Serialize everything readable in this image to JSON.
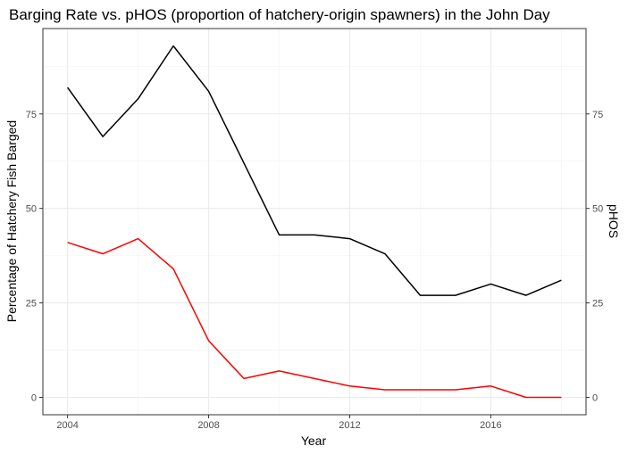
{
  "chart_data": {
    "type": "line",
    "title": "Barging Rate vs. pHOS (proportion of hatchery-origin spawners) in the John Day",
    "xlabel": "Year",
    "ylabel": "Percentage of Hatchery Fish Barged",
    "y2label": "pHOS",
    "xlim": [
      2003.3,
      2018.7
    ],
    "ylim": [
      -4.6,
      97.6
    ],
    "x_ticks": [
      2004,
      2008,
      2012,
      2016
    ],
    "y_ticks": [
      0,
      25,
      50,
      75
    ],
    "y2_ticks": [
      0,
      25,
      50,
      75
    ],
    "grid": true,
    "series": [
      {
        "color": "#000000",
        "axis": "left",
        "x": [
          2004,
          2005,
          2006,
          2007,
          2008,
          2009,
          2010,
          2011,
          2012,
          2013,
          2014,
          2015,
          2016,
          2017,
          2018
        ],
        "values": [
          82,
          69,
          79,
          93,
          81,
          62,
          43,
          43,
          42,
          38,
          27,
          27,
          30,
          27,
          31
        ]
      },
      {
        "color": "#ff0000",
        "axis": "right",
        "x": [
          2004,
          2005,
          2006,
          2007,
          2008,
          2009,
          2010,
          2011,
          2012,
          2013,
          2014,
          2015,
          2016,
          2017,
          2018
        ],
        "values": [
          41,
          38,
          42,
          34,
          15,
          5,
          7,
          5,
          3,
          2,
          2,
          2,
          3,
          0,
          0
        ]
      }
    ],
    "colors": {
      "y2label": "#ff0000"
    }
  }
}
